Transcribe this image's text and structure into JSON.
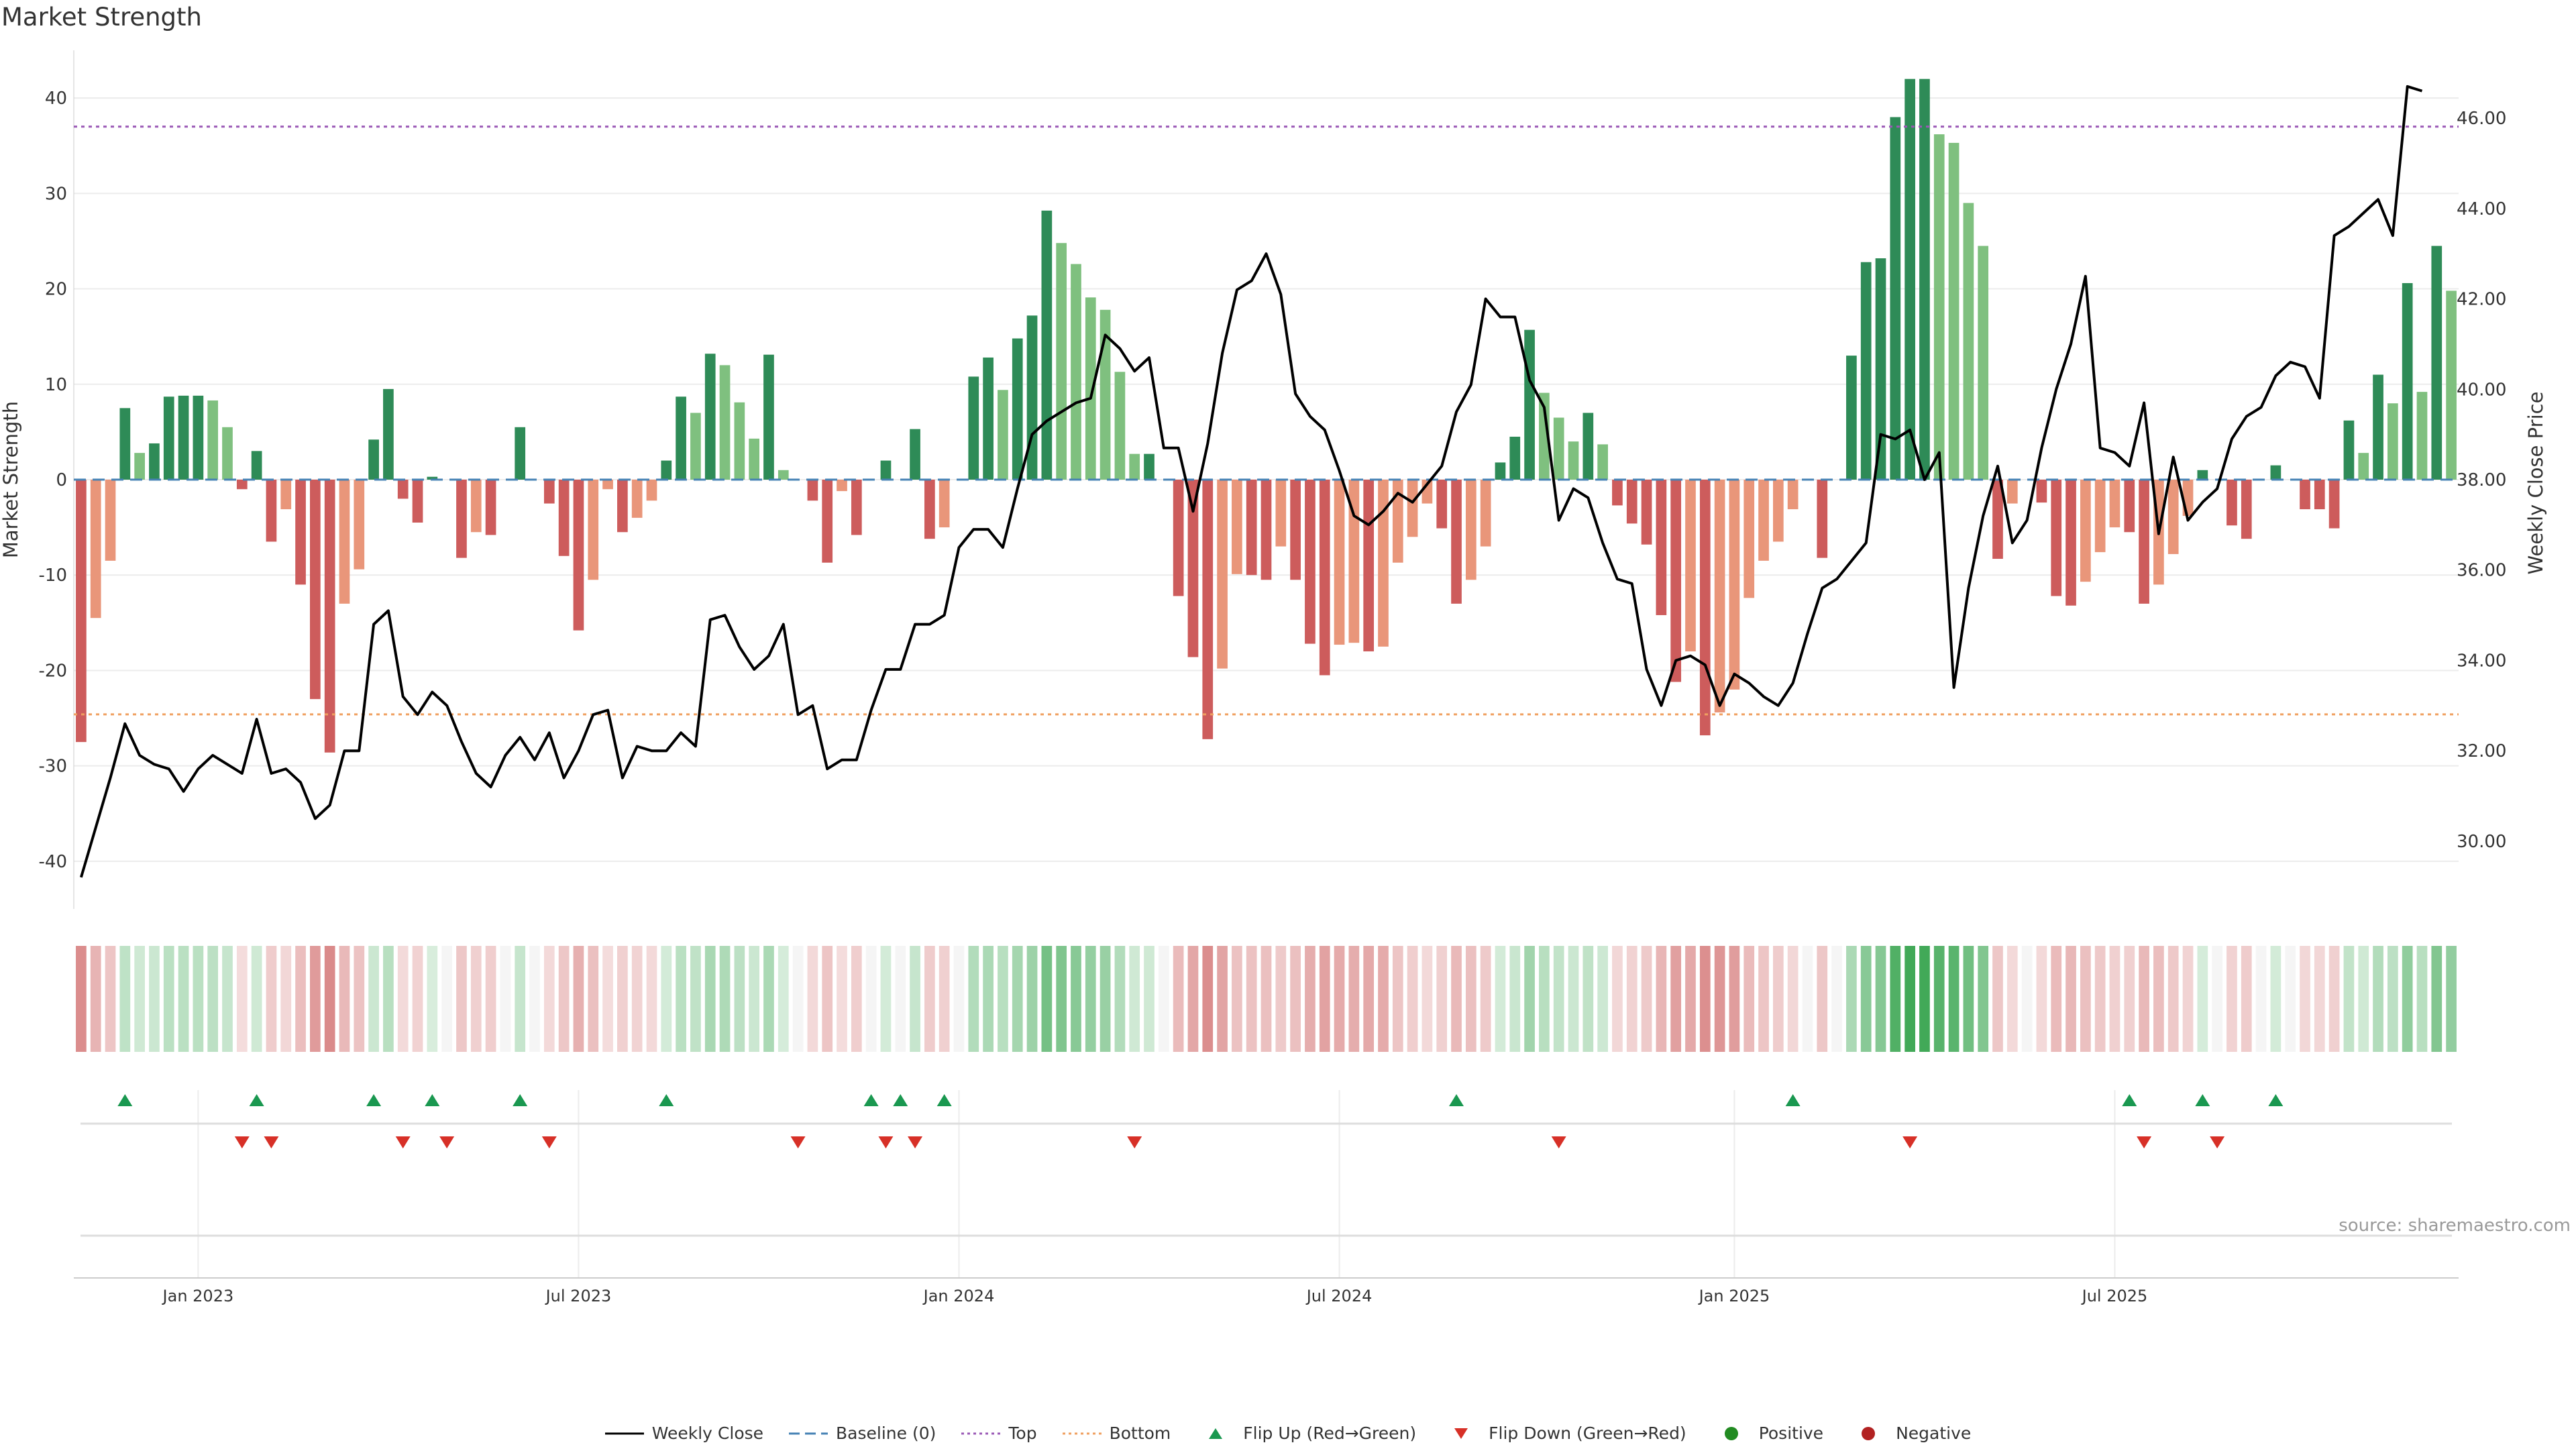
{
  "title": "Market Strength",
  "source": "source: sharemaestro.com",
  "colors": {
    "green_dark": "#2e8b57",
    "green_light": "#7fc07f",
    "red_dark": "#cd5c5c",
    "red_light": "#e9967a",
    "line": "#000000",
    "baseline": "#4682b4",
    "top": "#9b59b6",
    "bottom": "#f0a060",
    "flip_up": "#1a9850",
    "flip_down": "#d73027",
    "positive": "#228b22",
    "negative": "#b22222"
  },
  "legend": [
    {
      "label": "Weekly Close",
      "kind": "line"
    },
    {
      "label": "Baseline (0)",
      "kind": "dash"
    },
    {
      "label": "Top",
      "kind": "dot-top"
    },
    {
      "label": "Bottom",
      "kind": "dot-bottom"
    },
    {
      "label": "Flip Up (Red→Green)",
      "kind": "tri-up"
    },
    {
      "label": "Flip Down (Green→Red)",
      "kind": "tri-down"
    },
    {
      "label": "Positive",
      "kind": "dot-pos"
    },
    {
      "label": "Negative",
      "kind": "dot-neg"
    }
  ],
  "chart_data": {
    "type": "bar",
    "x_start": "2022-11-07",
    "x_step_days": 7,
    "xlabel": "",
    "ylabel": "Market Strength",
    "ylabel_right": "Weekly Close Price",
    "ylim": [
      -45,
      45
    ],
    "ylim_right": [
      28.5,
      47.5
    ],
    "yticks": [
      -40,
      -30,
      -20,
      -10,
      0,
      10,
      20,
      30,
      40
    ],
    "yticks_right": [
      "30.00",
      "32.00",
      "34.00",
      "36.00",
      "38.00",
      "40.00",
      "42.00",
      "44.00",
      "46.00"
    ],
    "xticks": [
      {
        "label": "Jan 2023",
        "date": "2023-01-02"
      },
      {
        "label": "Jul 2023",
        "date": "2023-07-03"
      },
      {
        "label": "Jan 2024",
        "date": "2024-01-01"
      },
      {
        "label": "Jul 2024",
        "date": "2024-07-01"
      },
      {
        "label": "Jan 2025",
        "date": "2025-01-06"
      },
      {
        "label": "Jul 2025",
        "date": "2025-07-07"
      }
    ],
    "top_line": 37,
    "bottom_line": -24.6,
    "baseline": 0,
    "grid": true,
    "strength": [
      -27.5,
      -14.5,
      -8.5,
      7.5,
      2.8,
      3.8,
      8.7,
      8.8,
      8.8,
      8.3,
      5.5,
      -1,
      3,
      -6.5,
      -3.1,
      -11,
      -23,
      -28.6,
      -13,
      -9.4,
      4.2,
      9.5,
      -2,
      -4.5,
      0.3,
      0,
      -8.2,
      -5.5,
      -5.8,
      0,
      5.5,
      0,
      -2.5,
      -8,
      -15.8,
      -10.5,
      -1,
      -5.5,
      -4,
      -2.2,
      2,
      8.7,
      7,
      13.2,
      12,
      8.1,
      4.3,
      13.1,
      1,
      0,
      -2.2,
      -8.7,
      -1.2,
      -5.8,
      0,
      2,
      0,
      5.3,
      -6.2,
      -5,
      0,
      10.8,
      12.8,
      9.4,
      14.8,
      17.2,
      28.2,
      24.8,
      22.6,
      19.1,
      17.8,
      11.3,
      2.7,
      2.7,
      0,
      -12.2,
      -18.6,
      -27.2,
      -19.8,
      -9.9,
      -10,
      -10.5,
      -7,
      -10.5,
      -17.2,
      -20.5,
      -17.3,
      -17.1,
      -18,
      -17.5,
      -8.7,
      -6,
      -2.5,
      -5.1,
      -13,
      -10.5,
      -7,
      1.8,
      4.5,
      15.7,
      9.1,
      6.5,
      4,
      7,
      3.7,
      -2.7,
      -4.6,
      -6.8,
      -14.2,
      -21.2,
      -18,
      -26.8,
      -24.4,
      -22,
      -12.4,
      -8.5,
      -6.5,
      -3.1,
      0,
      -8.2,
      0,
      13,
      22.8,
      23.2,
      38,
      42,
      42,
      36.2,
      35.3,
      29,
      24.5,
      -8.3,
      -2.5,
      0,
      -2.4,
      -12.2,
      -13.2,
      -10.7,
      -7.6,
      -5,
      -5.5,
      -13,
      -11,
      -7.8,
      -3.8,
      1,
      0,
      -4.8,
      -6.2,
      0,
      1.5,
      0,
      -3.1,
      -3.1,
      -5.1,
      6.2,
      2.8,
      11,
      8,
      20.6,
      9.2,
      24.5,
      19.8
    ],
    "weekly_close": [
      29.2,
      30.3,
      31.4,
      32.6,
      31.9,
      31.7,
      31.6,
      31.1,
      31.6,
      31.9,
      31.7,
      31.5,
      32.7,
      31.5,
      31.6,
      31.3,
      30.5,
      30.8,
      32.0,
      32.0,
      34.8,
      35.1,
      33.2,
      32.8,
      33.3,
      33.0,
      32.2,
      31.5,
      31.2,
      31.9,
      32.3,
      31.8,
      32.4,
      31.4,
      32.0,
      32.8,
      32.9,
      31.4,
      32.1,
      32.0,
      32.0,
      32.4,
      32.1,
      34.9,
      35.0,
      34.3,
      33.8,
      34.1,
      34.8,
      32.8,
      33.0,
      31.6,
      31.8,
      31.8,
      32.9,
      33.8,
      33.8,
      34.8,
      34.8,
      35.0,
      36.5,
      36.9,
      36.9,
      36.5,
      37.8,
      39.0,
      39.3,
      39.5,
      39.7,
      39.8,
      41.2,
      40.9,
      40.4,
      40.7,
      38.7,
      38.7,
      37.3,
      38.8,
      40.8,
      42.2,
      42.4,
      43.0,
      42.1,
      39.9,
      39.4,
      39.1,
      38.2,
      37.2,
      37.0,
      37.3,
      37.7,
      37.5,
      37.9,
      38.3,
      39.5,
      40.1,
      42.0,
      41.6,
      41.6,
      40.2,
      39.6,
      37.1,
      37.8,
      37.6,
      36.6,
      35.8,
      35.7,
      33.8,
      33.0,
      34.0,
      34.1,
      33.9,
      33.0,
      33.7,
      33.5,
      33.2,
      33.0,
      33.5,
      34.6,
      35.6,
      35.8,
      36.2,
      36.6,
      39.0,
      38.9,
      39.1,
      38.0,
      38.6,
      33.4,
      35.6,
      37.2,
      38.3,
      36.6,
      37.1,
      38.7,
      40.0,
      41.0,
      42.5,
      38.7,
      38.6,
      38.3,
      39.7,
      36.8,
      38.5,
      37.1,
      37.5,
      37.8,
      38.9,
      39.4,
      39.6,
      40.3,
      40.6,
      40.5,
      39.8,
      43.4,
      43.6,
      43.9,
      44.2,
      43.4,
      46.7,
      46.6
    ],
    "flip_up": [
      3,
      12,
      20,
      24,
      30,
      40,
      54,
      56,
      59,
      94,
      117,
      140,
      145,
      150
    ],
    "flip_down": [
      11,
      13,
      22,
      25,
      32,
      49,
      55,
      57,
      72,
      101,
      125,
      141,
      146
    ]
  }
}
